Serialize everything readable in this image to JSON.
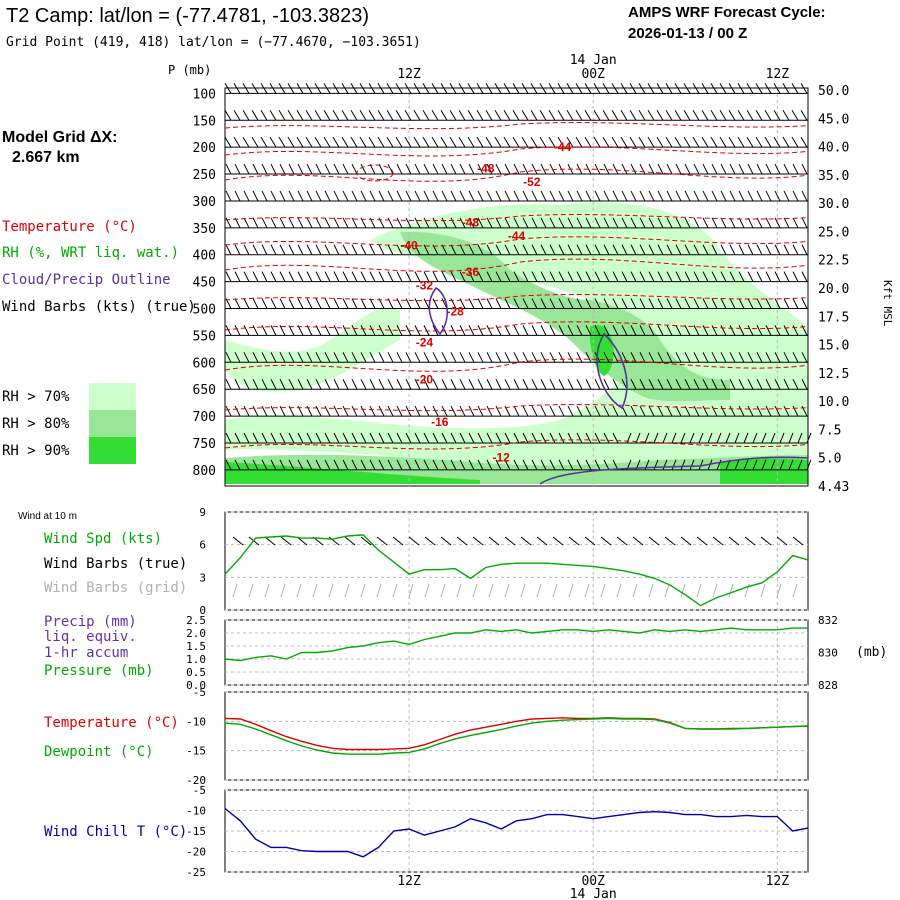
{
  "header": {
    "title": "T2 Camp:  lat/lon = (-77.4781, -103.3823)",
    "subtitle": "Grid Point (419, 418) lat/lon = (−77.4670, −103.3651)",
    "model_line1": "AMPS WRF Forecast Cycle:",
    "model_line2": "2026-01-13 / 00  Z",
    "grid_label": "Model Grid ΔX:",
    "grid_value": "2.667 km"
  },
  "legend": {
    "temperature": "Temperature (°C)",
    "rh": "RH (%, WRT liq. wat.)",
    "cloud": "Cloud/Precip Outline",
    "wind": "Wind Barbs (kts) (true)",
    "rh_levels": [
      {
        "label": "RH > 70%",
        "color": "#ccffcc"
      },
      {
        "label": "RH > 80%",
        "color": "#99e699"
      },
      {
        "label": "RH > 90%",
        "color": "#33dd33"
      }
    ]
  },
  "colors": {
    "temperature": "#dd0000",
    "rh_text": "#00aa00",
    "cloud": "#553399",
    "wind": "#000000",
    "wind_grid": "#b0b0b0",
    "precip": "#663399",
    "pressure": "#00aa00",
    "t2m": "#dd0000",
    "dewpoint": "#00aa00",
    "wind_chill": "#0000aa",
    "wind_speed": "#00aa00",
    "grid_line": "#bbbbbb"
  },
  "chart_data": [
    {
      "type": "heatmap",
      "name": "cross-section",
      "p_label": "P (mb)",
      "pressure_ticks": [
        "100",
        "150",
        "200",
        "250",
        "300",
        "350",
        "400",
        "450",
        "500",
        "550",
        "600",
        "650",
        "700",
        "750",
        "800"
      ],
      "pressure_values": [
        100,
        150,
        200,
        250,
        300,
        350,
        400,
        450,
        500,
        550,
        600,
        650,
        700,
        750,
        800
      ],
      "kft_ticks": [
        "50.0",
        "45.0",
        "40.0",
        "35.0",
        "30.0",
        "25.0",
        "22.5",
        "20.0",
        "17.5",
        "15.0",
        "12.5",
        "10.0",
        "7.5",
        "5.0",
        "4.43"
      ],
      "kft_label": "Kft MSL",
      "time_ticks": [
        "12Z",
        "00Z",
        "12Z"
      ],
      "time_hours": [
        12,
        24,
        36
      ],
      "date_label": "14 Jan",
      "x_range_hours": [
        0,
        38
      ],
      "p_range": [
        90,
        830
      ],
      "temperature_contours": [
        {
          "label": "-44",
          "hour": 22,
          "p": 200
        },
        {
          "label": "-48",
          "hour": 17,
          "p": 240
        },
        {
          "label": "-52",
          "hour": 20,
          "p": 265
        },
        {
          "label": "-48",
          "hour": 16,
          "p": 340
        },
        {
          "label": "-44",
          "hour": 19,
          "p": 365
        },
        {
          "label": "-40",
          "hour": 12,
          "p": 383
        },
        {
          "label": "-36",
          "hour": 16,
          "p": 432
        },
        {
          "label": "-32",
          "hour": 13,
          "p": 457
        },
        {
          "label": "-28",
          "hour": 15,
          "p": 506
        },
        {
          "label": "-24",
          "hour": 13,
          "p": 563
        },
        {
          "label": "-20",
          "hour": 13,
          "p": 632
        },
        {
          "label": "-16",
          "hour": 14,
          "p": 711
        },
        {
          "label": "-12",
          "hour": 18,
          "p": 777
        }
      ]
    },
    {
      "type": "line",
      "name": "wind-10m",
      "title": "Wind at 10 m",
      "labels": {
        "speed": "Wind Spd (kts)",
        "barbs_true": "Wind Barbs (true)",
        "barbs_grid": "Wind Barbs (grid)"
      },
      "y_ticks": [
        "0",
        "3",
        "6",
        "9"
      ],
      "ylim": [
        0,
        9
      ],
      "series": [
        {
          "name": "Wind Spd (kts)",
          "x": [
            0,
            1,
            2,
            3,
            4,
            5,
            6,
            7,
            8,
            9,
            10,
            11,
            12,
            13,
            14,
            15,
            16,
            17,
            18,
            19,
            20,
            21,
            22,
            23,
            24,
            25,
            26,
            27,
            28,
            29,
            30,
            31,
            32,
            33,
            34,
            35,
            36,
            37,
            38
          ],
          "values": [
            3.3,
            4.8,
            6.6,
            6.7,
            6.8,
            6.6,
            6.6,
            6.5,
            6.8,
            6.9,
            5.5,
            4.4,
            3.3,
            3.7,
            3.7,
            3.8,
            2.9,
            3.9,
            4.2,
            4.3,
            4.3,
            4.3,
            4.2,
            4.1,
            4.0,
            3.8,
            3.6,
            3.3,
            2.9,
            2.3,
            1.4,
            0.4,
            1.1,
            1.6,
            2.1,
            2.5,
            3.5,
            5.0,
            4.6
          ]
        }
      ]
    },
    {
      "type": "line",
      "name": "precip-pressure",
      "labels": {
        "precip": "Precip (mm)",
        "liq": "liq. equiv.",
        "accum": "1-hr accum",
        "pressure": "Pressure (mb)"
      },
      "y_ticks_left": [
        "0.0",
        "0.5",
        "1.0",
        "1.5",
        "2.0",
        "2.5"
      ],
      "ylim_left": [
        0,
        2.5
      ],
      "y_ticks_right": [
        "828",
        "830",
        "832"
      ],
      "ylim_right": [
        828,
        832
      ],
      "right_unit": "(mb)",
      "series": [
        {
          "name": "Pressure (mb)",
          "x": [
            0,
            1,
            2,
            3,
            4,
            5,
            6,
            7,
            8,
            9,
            10,
            11,
            12,
            13,
            14,
            15,
            16,
            17,
            18,
            19,
            20,
            21,
            22,
            23,
            24,
            25,
            26,
            27,
            28,
            29,
            30,
            31,
            32,
            33,
            34,
            35,
            36,
            37,
            38
          ],
          "values": [
            829.6,
            829.5,
            829.7,
            829.8,
            829.6,
            830.0,
            830.0,
            830.1,
            830.3,
            830.4,
            830.6,
            830.7,
            830.5,
            830.8,
            831.0,
            831.2,
            831.2,
            831.4,
            831.3,
            831.4,
            831.2,
            831.3,
            831.4,
            831.4,
            831.3,
            831.4,
            831.3,
            831.2,
            831.4,
            831.3,
            831.4,
            831.3,
            831.4,
            831.5,
            831.4,
            831.4,
            831.4,
            831.5,
            831.5
          ]
        }
      ]
    },
    {
      "type": "line",
      "name": "temperature-dewpoint",
      "labels": {
        "temperature": "Temperature (°C)",
        "dewpoint": "Dewpoint (°C)"
      },
      "y_ticks": [
        "-20",
        "-15",
        "-10",
        "-5"
      ],
      "ylim": [
        -20,
        -5
      ],
      "series": [
        {
          "name": "Temperature (°C)",
          "x": [
            0,
            1,
            2,
            3,
            4,
            5,
            6,
            7,
            8,
            9,
            10,
            11,
            12,
            13,
            14,
            15,
            16,
            17,
            18,
            19,
            20,
            21,
            22,
            23,
            24,
            25,
            26,
            27,
            28,
            29,
            30,
            31,
            32,
            33,
            34,
            35,
            36,
            37,
            38
          ],
          "values": [
            -9.5,
            -9.6,
            -10.5,
            -11.6,
            -12.6,
            -13.4,
            -14.1,
            -14.6,
            -14.8,
            -14.8,
            -14.8,
            -14.7,
            -14.6,
            -14.0,
            -13.1,
            -12.2,
            -11.5,
            -11.0,
            -10.5,
            -10.0,
            -9.6,
            -9.5,
            -9.4,
            -9.5,
            -9.5,
            -9.4,
            -9.5,
            -9.5,
            -9.6,
            -10.2,
            -11.2,
            -11.3,
            -11.3,
            -11.2,
            -11.2,
            -11.1,
            -11.0,
            -10.9,
            -10.8
          ]
        },
        {
          "name": "Dewpoint (°C)",
          "x": [
            0,
            1,
            2,
            3,
            4,
            5,
            6,
            7,
            8,
            9,
            10,
            11,
            12,
            13,
            14,
            15,
            16,
            17,
            18,
            19,
            20,
            21,
            22,
            23,
            24,
            25,
            26,
            27,
            28,
            29,
            30,
            31,
            32,
            33,
            34,
            35,
            36,
            37,
            38
          ],
          "values": [
            -10.3,
            -10.5,
            -11.3,
            -12.3,
            -13.3,
            -14.2,
            -14.9,
            -15.4,
            -15.6,
            -15.6,
            -15.6,
            -15.4,
            -15.3,
            -14.7,
            -13.8,
            -13.0,
            -12.4,
            -11.9,
            -11.4,
            -10.8,
            -10.3,
            -10.0,
            -9.8,
            -9.7,
            -9.6,
            -9.5,
            -9.6,
            -9.6,
            -9.7,
            -10.3,
            -11.2,
            -11.3,
            -11.3,
            -11.3,
            -11.2,
            -11.1,
            -11.0,
            -10.9,
            -10.8
          ]
        }
      ]
    },
    {
      "type": "line",
      "name": "wind-chill",
      "labels": {
        "windchill": "Wind Chill T (°C)"
      },
      "y_ticks": [
        "-25",
        "-20",
        "-15",
        "-10",
        "-5"
      ],
      "ylim": [
        -25,
        -5
      ],
      "time_ticks": [
        "12Z",
        "00Z",
        "12Z"
      ],
      "time_hours": [
        12,
        24,
        36
      ],
      "date_label": "14 Jan",
      "series": [
        {
          "name": "Wind Chill T (°C)",
          "x": [
            0,
            1,
            2,
            3,
            4,
            5,
            6,
            7,
            8,
            9,
            10,
            11,
            12,
            13,
            14,
            15,
            16,
            17,
            18,
            19,
            20,
            21,
            22,
            23,
            24,
            25,
            26,
            27,
            28,
            29,
            30,
            31,
            32,
            33,
            34,
            35,
            36,
            37,
            38
          ],
          "values": [
            -9.5,
            -12.5,
            -17.0,
            -19.0,
            -19.0,
            -19.8,
            -20.0,
            -20.0,
            -20.0,
            -21.3,
            -19.0,
            -15.0,
            -14.5,
            -16.0,
            -15.0,
            -14.0,
            -12.0,
            -13.0,
            -14.5,
            -12.5,
            -12.0,
            -11.0,
            -11.0,
            -11.5,
            -12.0,
            -11.5,
            -11.0,
            -10.5,
            -10.3,
            -10.5,
            -11.0,
            -11.0,
            -11.5,
            -11.5,
            -11.2,
            -11.5,
            -11.5,
            -15.0,
            -14.3
          ]
        }
      ]
    }
  ]
}
